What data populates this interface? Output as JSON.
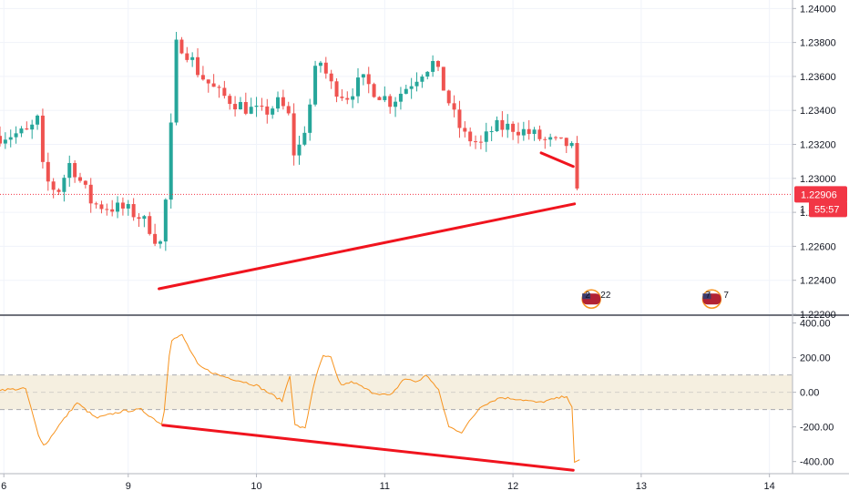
{
  "chart_data": [
    {
      "type": "candlestick",
      "name": "price-pane",
      "colors": {
        "up": "#26a69a",
        "down": "#ef5350",
        "trendline": "#f0141e",
        "price_line": "#f23645",
        "grid": "#f0f3fa"
      },
      "ylim": [
        1.222,
        1.2405
      ],
      "y_ticks": [
        "1.22200",
        "1.22400",
        "1.22600",
        "1.22800",
        "1.23000",
        "1.23200",
        "1.23400",
        "1.23600",
        "1.23800",
        "1.24000"
      ],
      "y_tick_values": [
        1.222,
        1.224,
        1.226,
        1.228,
        1.23,
        1.232,
        1.234,
        1.236,
        1.238,
        1.24
      ],
      "current_price": {
        "label": "1.22906",
        "value": 1.22906
      },
      "countdown": {
        "partial_price": "1",
        "label": "55:57",
        "value": 1.2282
      },
      "events": [
        {
          "flag": "us-flag-icon",
          "label": "2",
          "x": 12.54
        },
        {
          "flag": "us-flag-icon",
          "label": "22",
          "x": 12.68
        },
        {
          "flag": "us-flag-icon",
          "label": "7",
          "x": 13.48
        },
        {
          "flag": "us-flag-icon",
          "label": "7",
          "x": 13.62
        }
      ],
      "trendlines": [
        {
          "x1": 9.24,
          "y1": 1.2235,
          "x2": 12.48,
          "y2": 1.2285
        },
        {
          "x1": 12.22,
          "y1": 1.2315,
          "x2": 12.47,
          "y2": 1.2307
        }
      ]
    },
    {
      "type": "line",
      "name": "oscillator-pane",
      "colors": {
        "line": "#f7931e",
        "band": "#f5efe0",
        "trendline": "#f0141e"
      },
      "ylim": [
        -470,
        440
      ],
      "y_ticks": [
        "400.00",
        "200.00",
        "0.00",
        "-200.00",
        "-400.00"
      ],
      "y_tick_values": [
        400,
        200,
        0,
        -200,
        -400
      ],
      "band": [
        -100,
        100
      ],
      "trendlines": [
        {
          "x1": 9.27,
          "y1": -190,
          "x2": 12.47,
          "y2": -450
        }
      ]
    }
  ],
  "x_axis": {
    "xlim": [
      8.0,
      14.18
    ],
    "ticks": [
      "6",
      "9",
      "10",
      "11",
      "12",
      "13",
      "14"
    ],
    "tick_values": [
      8.03,
      9.0,
      10.0,
      11.0,
      12.0,
      13.0,
      14.0
    ]
  }
}
